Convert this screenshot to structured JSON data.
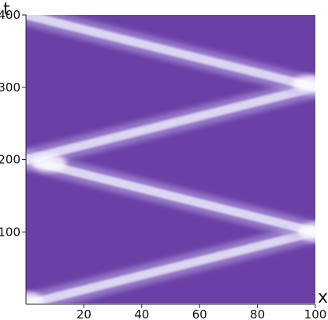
{
  "chart_data": {
    "type": "heatmap",
    "title": "",
    "xlabel": "x",
    "ylabel": "t",
    "xlim": [
      0,
      100
    ],
    "ylim": [
      0,
      400
    ],
    "x_ticks": [
      {
        "value": 20,
        "label": "20"
      },
      {
        "value": 40,
        "label": "40"
      },
      {
        "value": 60,
        "label": "60"
      },
      {
        "value": 80,
        "label": "80"
      },
      {
        "value": 100,
        "label": "100"
      }
    ],
    "y_ticks": [
      {
        "value": 100,
        "label": "100"
      },
      {
        "value": 200,
        "label": "200"
      },
      {
        "value": 300,
        "label": "300"
      },
      {
        "value": 400,
        "label": "400"
      }
    ],
    "colors": {
      "background": "#6a3fa6",
      "beam": "#e8e6f8",
      "beam_edge": "#b8a8e6"
    },
    "beams": [
      {
        "x_start": 0,
        "t_start": 0,
        "x_end": 100,
        "t_end": 100
      },
      {
        "x_start": 100,
        "t_start": 100,
        "x_end": 0,
        "t_end": 200
      },
      {
        "x_start": 0,
        "t_start": 200,
        "x_end": 100,
        "t_end": 300
      },
      {
        "x_start": 100,
        "t_start": 300,
        "x_end": 0,
        "t_end": 400
      }
    ],
    "bounce_points": [
      {
        "x": 0,
        "t": 5
      },
      {
        "x": 100,
        "t": 100
      },
      {
        "x": 8,
        "t": 195
      },
      {
        "x": 98,
        "t": 305
      }
    ]
  }
}
